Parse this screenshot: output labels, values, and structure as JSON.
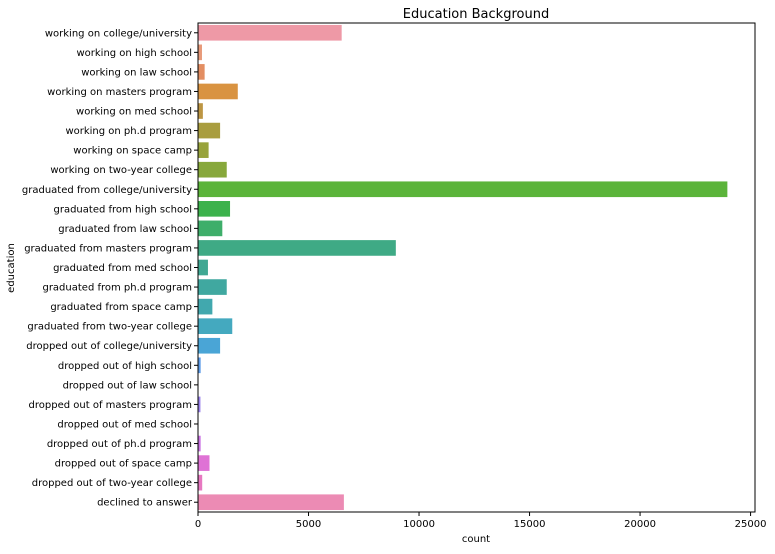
{
  "chart_data": {
    "type": "bar",
    "orientation": "horizontal",
    "title": "Education Background",
    "xlabel": "count",
    "ylabel": "education",
    "xlim": [
      0,
      25200
    ],
    "xticks": [
      0,
      5000,
      10000,
      15000,
      20000,
      25000
    ],
    "xtick_labels": [
      "0",
      "5000",
      "10000",
      "15000",
      "20000",
      "25000"
    ],
    "grid": false,
    "categories": [
      "working on college/university",
      "working on high school",
      "working on law school",
      "working on masters program",
      "working on med school",
      "working on ph.d program",
      "working on space camp",
      "working on two-year college",
      "graduated from college/university",
      "graduated from high school",
      "graduated from law school",
      "graduated from masters program",
      "graduated from med school",
      "graduated from ph.d program",
      "graduated from space camp",
      "graduated from two-year college",
      "dropped out of college/university",
      "dropped out of high school",
      "dropped out of law school",
      "dropped out of masters program",
      "dropped out of med school",
      "dropped out of ph.d program",
      "dropped out of space camp",
      "dropped out of two-year college",
      "declined to answer"
    ],
    "values": [
      6500,
      180,
      300,
      1800,
      220,
      1000,
      480,
      1300,
      23950,
      1450,
      1100,
      8950,
      450,
      1300,
      650,
      1550,
      1000,
      120,
      20,
      110,
      10,
      120,
      520,
      190,
      6600
    ],
    "colors": [
      "#ee99a6",
      "#e89a7a",
      "#e38e62",
      "#d99341",
      "#bd9643",
      "#a99d3f",
      "#98a33c",
      "#87a83b",
      "#5bb43a",
      "#3cb24c",
      "#3eae6a",
      "#3faa85",
      "#40a893",
      "#40a8a0",
      "#41a8ae",
      "#44a9bf",
      "#4aa5d6",
      "#5d9be8",
      "#7d8fec",
      "#9a82ec",
      "#b47aeb",
      "#cb73e3",
      "#df72d5",
      "#e778c1",
      "#ec8bb4"
    ]
  }
}
